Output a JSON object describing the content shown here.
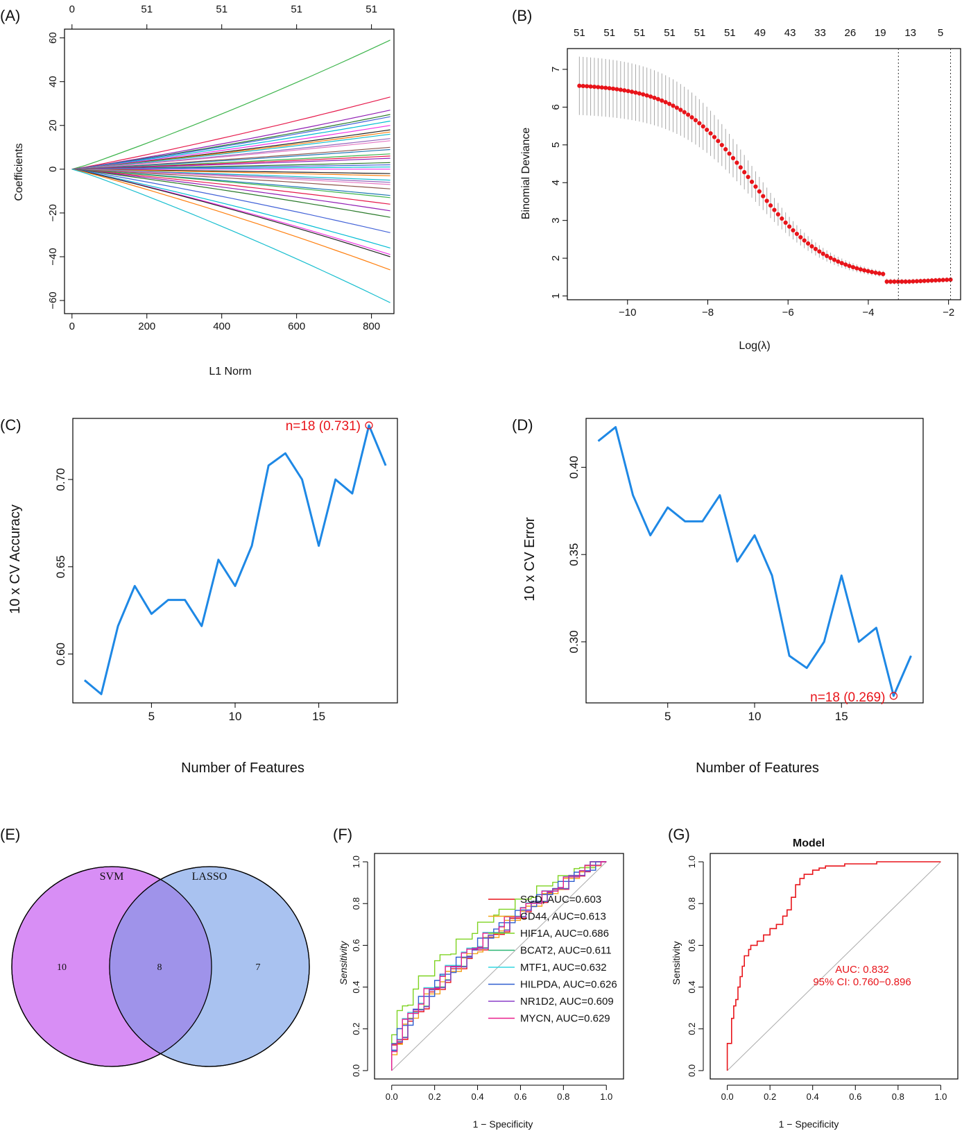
{
  "chart_data": [
    {
      "panel_label": "(A)",
      "type": "line",
      "xlabel": "L1 Norm",
      "ylabel": "Coefficients",
      "xlim": [
        -20,
        860
      ],
      "ylim": [
        -66,
        64
      ],
      "x_ticks": [
        "0",
        "200",
        "400",
        "600",
        "800"
      ],
      "x_tick_values": [
        0,
        200,
        400,
        600,
        800
      ],
      "y_ticks": [
        "60",
        "40",
        "20",
        "0",
        "−20",
        "−40",
        "−60"
      ],
      "y_tick_values": [
        60,
        40,
        20,
        0,
        -20,
        -40,
        -60
      ],
      "top_axis_labels": [
        "0",
        "51",
        "51",
        "51",
        "51"
      ],
      "top_axis_positions": [
        0,
        200,
        400,
        600,
        800
      ],
      "x_end": 850,
      "series_end_values": [
        59,
        33,
        27,
        25,
        24,
        22,
        20,
        18,
        17,
        16,
        14,
        13,
        10,
        9,
        7,
        6,
        5,
        3,
        2,
        1,
        0,
        -2,
        -3,
        -5,
        -6,
        -7,
        -9,
        -12,
        -13,
        -16,
        -19,
        -22,
        -29,
        -36,
        -39,
        -40,
        -46,
        -61
      ],
      "colors": [
        "#3cb44b",
        "#e6194b",
        "#911eb4",
        "#2a7a2a",
        "#4363d8",
        "#00bcd4",
        "#f032e6",
        "#222222",
        "#ff7f0e",
        "#17becf",
        "#9467bd",
        "#e377c2",
        "#8c564b",
        "#1f77b4"
      ]
    },
    {
      "panel_label": "(B)",
      "type": "scatter",
      "xlabel": "Log(λ)",
      "ylabel": "Binomial Deviance",
      "xlim": [
        -11.5,
        -1.7
      ],
      "ylim": [
        0.9,
        7.55
      ],
      "x_ticks": [
        "−10",
        "−8",
        "−6",
        "−4",
        "−2"
      ],
      "x_tick_values": [
        -10,
        -8,
        -6,
        -4,
        -2
      ],
      "y_ticks": [
        "7",
        "6",
        "5",
        "4",
        "3",
        "2",
        "1"
      ],
      "y_tick_values": [
        7,
        6,
        5,
        4,
        3,
        2,
        1
      ],
      "top_axis_labels": [
        "51",
        "51",
        "51",
        "51",
        "51",
        "51",
        "49",
        "43",
        "33",
        "26",
        "19",
        "13",
        "5"
      ],
      "top_axis_positions": [
        -11.2,
        -10.45,
        -9.7,
        -8.95,
        -8.2,
        -7.45,
        -6.7,
        -5.95,
        -5.2,
        -4.45,
        -3.7,
        -2.95,
        -2.2
      ],
      "curve_x_range": [
        -11.2,
        -1.95
      ],
      "vlines": [
        -3.25,
        -1.95
      ],
      "point_color": "#e8141a",
      "errorbar_color": "#a8a8a8"
    },
    {
      "panel_label": "(C)",
      "type": "line",
      "xlabel": "Number of Features",
      "ylabel": "10 x CV Accuracy",
      "xlim": [
        0.3,
        19.7
      ],
      "ylim": [
        0.572,
        0.735
      ],
      "x_ticks": [
        "5",
        "10",
        "15"
      ],
      "x_tick_values": [
        5,
        10,
        15
      ],
      "y_ticks": [
        "0.70",
        "0.65",
        "0.60"
      ],
      "y_tick_values": [
        0.7,
        0.65,
        0.6
      ],
      "x": [
        1,
        2,
        3,
        4,
        5,
        6,
        7,
        8,
        9,
        10,
        11,
        12,
        13,
        14,
        15,
        16,
        17,
        18,
        19
      ],
      "y": [
        0.585,
        0.577,
        0.616,
        0.639,
        0.623,
        0.631,
        0.631,
        0.616,
        0.654,
        0.639,
        0.662,
        0.708,
        0.715,
        0.7,
        0.662,
        0.7,
        0.692,
        0.731,
        0.708
      ],
      "highlight_x": 18,
      "highlight_y": 0.731,
      "annotation": "n=18 (0.731)",
      "line_color": "#1e88e5"
    },
    {
      "panel_label": "(D)",
      "type": "line",
      "xlabel": "Number of Features",
      "ylabel": "10 x CV Error",
      "xlim": [
        0.3,
        19.7
      ],
      "ylim": [
        0.265,
        0.428
      ],
      "x_ticks": [
        "5",
        "10",
        "15"
      ],
      "x_tick_values": [
        5,
        10,
        15
      ],
      "y_ticks": [
        "0.40",
        "0.35",
        "0.30"
      ],
      "y_tick_values": [
        0.4,
        0.35,
        0.3
      ],
      "x": [
        1,
        2,
        3,
        4,
        5,
        6,
        7,
        8,
        9,
        10,
        11,
        12,
        13,
        14,
        15,
        16,
        17,
        18,
        19
      ],
      "y": [
        0.415,
        0.423,
        0.384,
        0.361,
        0.377,
        0.369,
        0.369,
        0.384,
        0.346,
        0.361,
        0.338,
        0.292,
        0.285,
        0.3,
        0.338,
        0.3,
        0.308,
        0.269,
        0.292
      ],
      "highlight_x": 18,
      "highlight_y": 0.269,
      "annotation": "n=18 (0.269)",
      "line_color": "#1e88e5"
    },
    {
      "panel_label": "(E)",
      "type": "venn",
      "sets": [
        {
          "name": "SVM",
          "only": "10",
          "color": "#d88ef5",
          "label_color": "#a040e0"
        },
        {
          "name": "LASSO",
          "only": "7",
          "color": "#a9c2f0",
          "label_color": "#5a82d8"
        }
      ],
      "intersection": "8",
      "intersection_color": "#9f93ea"
    },
    {
      "panel_label": "(F)",
      "type": "line",
      "xlabel": "1 − Specificity",
      "ylabel": "Sensitivity",
      "xlim": [
        -0.08,
        1.08
      ],
      "ylim": [
        -0.04,
        1.04
      ],
      "x_ticks": [
        "0.0",
        "0.2",
        "0.4",
        "0.6",
        "0.8",
        "1.0"
      ],
      "x_tick_values": [
        0,
        0.2,
        0.4,
        0.6,
        0.8,
        1.0
      ],
      "y_ticks": [
        "0.0",
        "0.2",
        "0.4",
        "0.6",
        "0.8",
        "1.0"
      ],
      "y_tick_values": [
        0,
        0.2,
        0.4,
        0.6,
        0.8,
        1.0
      ],
      "series": [
        {
          "name": "SCD, AUC=0.603",
          "color": "#e8141a"
        },
        {
          "name": "CD44, AUC=0.613",
          "color": "#f2a31b"
        },
        {
          "name": "HIF1A, AUC=0.686",
          "color": "#7ed321"
        },
        {
          "name": "BCAT2, AUC=0.611",
          "color": "#2bb673"
        },
        {
          "name": "MTF1, AUC=0.632",
          "color": "#33d6e0"
        },
        {
          "name": "HILPDA, AUC=0.626",
          "color": "#2f5fd0"
        },
        {
          "name": "NR1D2, AUC=0.609",
          "color": "#8a3fc9"
        },
        {
          "name": "MYCN, AUC=0.629",
          "color": "#e91e8c"
        }
      ]
    },
    {
      "panel_label": "(G)",
      "type": "line",
      "title": "Model",
      "xlabel": "1 − Specificity",
      "ylabel": "Sensitivity",
      "xlim": [
        -0.08,
        1.08
      ],
      "ylim": [
        -0.04,
        1.04
      ],
      "x_ticks": [
        "0.0",
        "0.2",
        "0.4",
        "0.6",
        "0.8",
        "1.0"
      ],
      "x_tick_values": [
        0,
        0.2,
        0.4,
        0.6,
        0.8,
        1.0
      ],
      "y_ticks": [
        "0.0",
        "0.2",
        "0.4",
        "0.6",
        "0.8",
        "1.0"
      ],
      "y_tick_values": [
        0,
        0.2,
        0.4,
        0.6,
        0.8,
        1.0
      ],
      "annotation_lines": [
        "AUC: 0.832",
        "95% CI: 0.760−0.896"
      ],
      "x": [
        0,
        0,
        0.02,
        0.02,
        0.03,
        0.03,
        0.04,
        0.04,
        0.05,
        0.05,
        0.06,
        0.06,
        0.07,
        0.07,
        0.08,
        0.08,
        0.1,
        0.1,
        0.11,
        0.11,
        0.14,
        0.14,
        0.17,
        0.17,
        0.2,
        0.2,
        0.23,
        0.23,
        0.26,
        0.26,
        0.28,
        0.28,
        0.3,
        0.3,
        0.32,
        0.32,
        0.34,
        0.34,
        0.36,
        0.36,
        0.4,
        0.4,
        0.43,
        0.43,
        0.46,
        0.46,
        0.5,
        0.5,
        0.55,
        0.55,
        0.7,
        0.7,
        0.86,
        0.86,
        1.0
      ],
      "y": [
        0,
        0.13,
        0.13,
        0.25,
        0.25,
        0.31,
        0.31,
        0.34,
        0.34,
        0.4,
        0.4,
        0.45,
        0.45,
        0.5,
        0.5,
        0.55,
        0.55,
        0.58,
        0.58,
        0.6,
        0.6,
        0.62,
        0.62,
        0.65,
        0.65,
        0.68,
        0.68,
        0.7,
        0.7,
        0.74,
        0.74,
        0.77,
        0.77,
        0.83,
        0.83,
        0.89,
        0.89,
        0.92,
        0.92,
        0.94,
        0.94,
        0.96,
        0.96,
        0.97,
        0.97,
        0.98,
        0.98,
        0.98,
        0.98,
        0.99,
        0.99,
        1.0,
        1.0,
        1.0,
        1.0
      ],
      "line_color": "#e8141a"
    }
  ]
}
